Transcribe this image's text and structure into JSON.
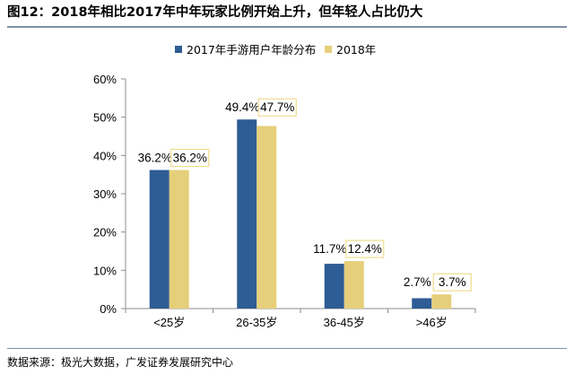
{
  "title": "图12：2018年相比2017年中年玩家比例开始上升，但年轻人占比仍大",
  "source": "数据来源：极光大数据，广发证券发展研究中心",
  "colors": {
    "series_2017": "#2e5c94",
    "series_2018": "#e6cf7a",
    "label_box": "#f0dc8c"
  },
  "chart_data": {
    "type": "bar",
    "title": "",
    "xlabel": "",
    "ylabel": "",
    "categories": [
      "<25岁",
      "26-35岁",
      "36-45岁",
      ">46岁"
    ],
    "series": [
      {
        "name": "2017年手游用户年龄分布",
        "values": [
          36.2,
          49.4,
          11.7,
          2.7
        ],
        "labels": [
          "36.2%",
          "49.4%",
          "11.7%",
          "2.7%"
        ]
      },
      {
        "name": "2018年",
        "values": [
          36.2,
          47.7,
          12.4,
          3.7
        ],
        "labels": [
          "36.2%",
          "47.7%",
          "12.4%",
          "3.7%"
        ]
      }
    ],
    "ylim": [
      0,
      60
    ],
    "yticks": [
      "0%",
      "10%",
      "20%",
      "30%",
      "40%",
      "50%",
      "60%"
    ],
    "grid": false,
    "legend_position": "top"
  }
}
